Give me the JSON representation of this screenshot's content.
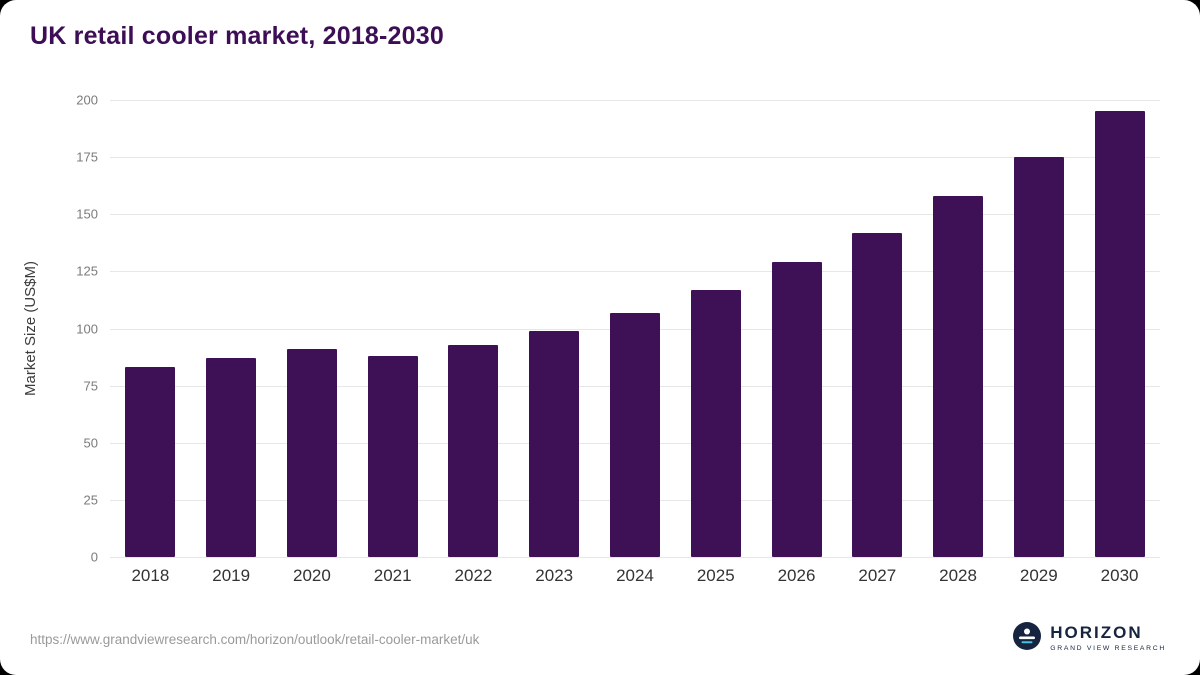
{
  "title": "UK retail cooler market, 2018-2030",
  "footer": {
    "source_url": "https://www.grandviewresearch.com/horizon/outlook/retail-cooler-market/uk",
    "brand": {
      "name": "HORIZON",
      "subtitle": "GRAND VIEW RESEARCH",
      "logo_icon": "horizon-sun-circle-icon"
    }
  },
  "colors": {
    "bar": "#3e1056",
    "title": "#3d0e56",
    "grid": "#e7e7e7",
    "y_tick_text": "#7b7b7b",
    "x_tick_text": "#333333",
    "url_text": "#9a9a9a",
    "logo_bg": "#16243f",
    "logo_accent": "#45c2e0",
    "background": "#ffffff"
  },
  "chart_data": {
    "type": "bar",
    "title": "UK retail cooler market, 2018-2030",
    "xlabel": "",
    "ylabel": "Market Size (US$M)",
    "categories": [
      "2018",
      "2019",
      "2020",
      "2021",
      "2022",
      "2023",
      "2024",
      "2025",
      "2026",
      "2027",
      "2028",
      "2029",
      "2030"
    ],
    "values": [
      83,
      87,
      91,
      88,
      93,
      99,
      107,
      117,
      129,
      142,
      158,
      175,
      195
    ],
    "ylim": [
      0,
      200
    ],
    "yticks": [
      0,
      25,
      50,
      75,
      100,
      125,
      150,
      175,
      200
    ],
    "grid": true,
    "legend": false
  }
}
